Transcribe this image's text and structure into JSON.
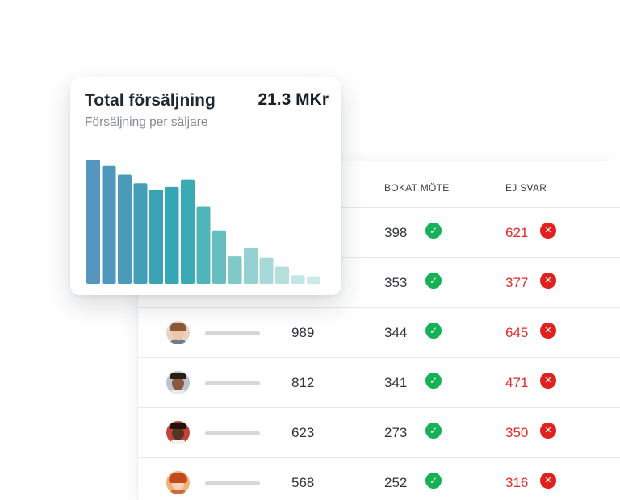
{
  "card": {
    "title": "Total försäljning",
    "value": "21.3 MKr",
    "subtitle": "Försäljning per säljare"
  },
  "chart_data": {
    "type": "bar",
    "values": [
      100,
      95,
      88,
      81,
      76,
      78,
      84,
      62,
      43,
      22,
      29,
      21,
      14,
      7,
      6
    ],
    "colors": [
      "#5596c0",
      "#4f98bd",
      "#4a9bba",
      "#439eb7",
      "#3aa2b5",
      "#35a6b3",
      "#3aabb4",
      "#4fb5b9",
      "#66bec0",
      "#80c8c9",
      "#94d1d0",
      "#a6d9d7",
      "#b5dfdd",
      "#c3e5e3",
      "#cce9e7"
    ],
    "ylim": [
      0,
      100
    ]
  },
  "table": {
    "headers": {
      "booked": "BOKAT MÖTE",
      "noreply": "EJ SVAR"
    },
    "rows": [
      {
        "total": "",
        "booked": "398",
        "noreply": "621"
      },
      {
        "total": "",
        "booked": "353",
        "noreply": "377"
      },
      {
        "total": "989",
        "booked": "344",
        "noreply": "645"
      },
      {
        "total": "812",
        "booked": "341",
        "noreply": "471"
      },
      {
        "total": "623",
        "booked": "273",
        "noreply": "350"
      },
      {
        "total": "568",
        "booked": "252",
        "noreply": "316"
      }
    ],
    "check_icon": "check-circle-icon",
    "x_icon": "x-circle-icon"
  },
  "colors": {
    "accent_green": "#16b157",
    "accent_red": "#e0211d"
  }
}
